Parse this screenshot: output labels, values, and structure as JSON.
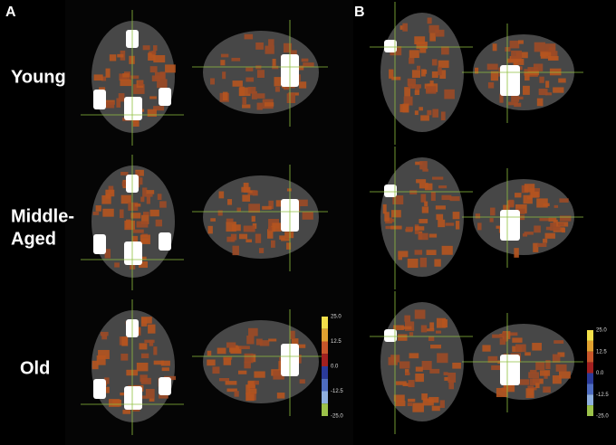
{
  "panels": [
    {
      "label": "A"
    },
    {
      "label": "B"
    }
  ],
  "row_labels": [
    [
      "Young"
    ],
    [
      "Middle-",
      "Aged"
    ],
    [
      "Old"
    ]
  ],
  "colorbar": {
    "labels": [
      "25.0",
      "12.5",
      "0.0",
      "-12.5",
      "-25.0"
    ]
  }
}
